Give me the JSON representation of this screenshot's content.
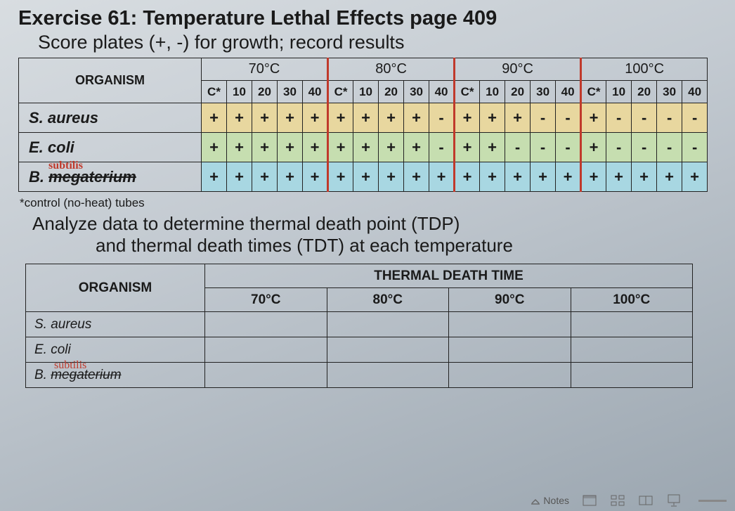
{
  "title": "Exercise 61: Temperature Lethal Effects page 409",
  "subtitle": "Score plates (+, -) for growth; record results",
  "footnote": "*control (no-heat) tubes",
  "analyze_line1": "Analyze data to determine thermal death point (TDP)",
  "analyze_line2": "and thermal death times (TDT) at each temperature",
  "table1": {
    "organism_header": "ORGANISM",
    "temps": [
      "70°C",
      "80°C",
      "90°C",
      "100°C"
    ],
    "sub_headers": [
      "C*",
      "10",
      "20",
      "30",
      "40"
    ],
    "rows": [
      {
        "organism_plain": "S. aureus",
        "color": "yellow",
        "cells": [
          "+",
          "+",
          "+",
          "+",
          "+",
          "+",
          "+",
          "+",
          "+",
          "-",
          "+",
          "+",
          "+",
          "-",
          "-",
          "+",
          "-",
          "-",
          "-",
          "-"
        ]
      },
      {
        "organism_plain": "E. coli",
        "color": "green",
        "cells": [
          "+",
          "+",
          "+",
          "+",
          "+",
          "+",
          "+",
          "+",
          "+",
          "-",
          "+",
          "+",
          "-",
          "-",
          "-",
          "+",
          "-",
          "-",
          "-",
          "-"
        ]
      },
      {
        "organism_strike": "megaterium",
        "organism_prefix": "B. ",
        "handwritten": "subtilis",
        "color": "blue",
        "cells": [
          "+",
          "+",
          "+",
          "+",
          "+",
          "+",
          "+",
          "+",
          "+",
          "+",
          "+",
          "+",
          "+",
          "+",
          "+",
          "+",
          "+",
          "+",
          "+",
          "+"
        ]
      }
    ]
  },
  "table2": {
    "tdt_header": "THERMAL DEATH TIME",
    "organism_header": "ORGANISM",
    "temps": [
      "70°C",
      "80°C",
      "90°C",
      "100°C"
    ],
    "rows": [
      {
        "organism_plain": "S. aureus"
      },
      {
        "organism_plain": "E. coli"
      },
      {
        "organism_prefix": "B. ",
        "organism_strike": "megaterium",
        "handwritten": "subtilis"
      }
    ]
  },
  "toolbar": {
    "notes_label": "Notes"
  }
}
